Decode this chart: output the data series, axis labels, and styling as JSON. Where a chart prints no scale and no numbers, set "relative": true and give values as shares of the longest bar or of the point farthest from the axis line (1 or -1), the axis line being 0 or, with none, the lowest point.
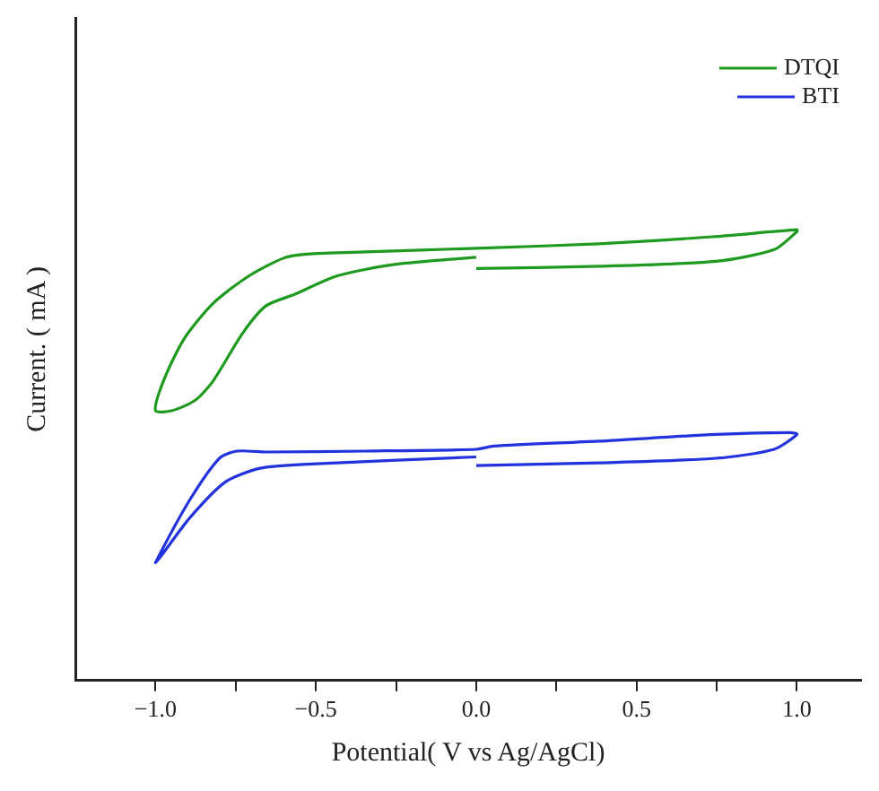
{
  "chart_data": {
    "type": "line",
    "relative": true,
    "xlabel": "Potential( V vs Ag/AgCl)",
    "ylabel": "Current. ( mA )",
    "xlim": [
      -1.25,
      1.2
    ],
    "xticks": [
      {
        "value": -1.0,
        "label": "−1.0"
      },
      {
        "value": -0.75,
        "label": null
      },
      {
        "value": -0.5,
        "label": "−0.5"
      },
      {
        "value": -0.25,
        "label": null
      },
      {
        "value": 0,
        "label": "0.0"
      },
      {
        "value": 0.25,
        "label": null
      },
      {
        "value": 0.5,
        "label": "0.5"
      },
      {
        "value": 0.75,
        "label": null
      },
      {
        "value": 1.0,
        "label": "1.0"
      }
    ],
    "tick_labels": "x",
    "legend": "top right",
    "grid": false,
    "marker": "none",
    "line_style": "solid",
    "series": [
      {
        "name": "DTQI",
        "color": "#1e9a1e",
        "x": [
          0,
          0.383,
          0.747,
          0.929,
          1.0,
          1.0,
          0.747,
          0.383,
          0,
          -0.346,
          -0.528,
          -0.601,
          -0.71,
          -0.82,
          -0.911,
          -0.975,
          -1.0,
          -0.947,
          -0.874,
          -0.82,
          -0.728,
          -0.656,
          -0.565,
          -0.437,
          -0.255,
          0
        ],
        "values": [
          0.914,
          0.919,
          0.93,
          0.956,
          0.996,
          1.0,
          0.985,
          0.969,
          0.959,
          0.951,
          0.946,
          0.937,
          0.897,
          0.837,
          0.758,
          0.665,
          0.599,
          0.599,
          0.623,
          0.665,
          0.771,
          0.831,
          0.857,
          0.897,
          0.923,
          0.939
        ]
      },
      {
        "name": "BTI",
        "color": "#2233dd",
        "x": [
          0,
          0.383,
          0.747,
          0.929,
          1.0,
          0.98,
          0.747,
          0.383,
          0.055,
          0,
          -0.346,
          -0.656,
          -0.747,
          -0.801,
          -0.893,
          -1.0,
          -0.984,
          -0.893,
          -0.783,
          -0.674,
          -0.528,
          0
        ],
        "values": [
          0.477,
          0.483,
          0.493,
          0.513,
          0.546,
          0.55,
          0.546,
          0.531,
          0.52,
          0.513,
          0.509,
          0.507,
          0.509,
          0.493,
          0.401,
          0.262,
          0.275,
          0.361,
          0.44,
          0.471,
          0.48,
          0.496
        ]
      }
    ]
  }
}
